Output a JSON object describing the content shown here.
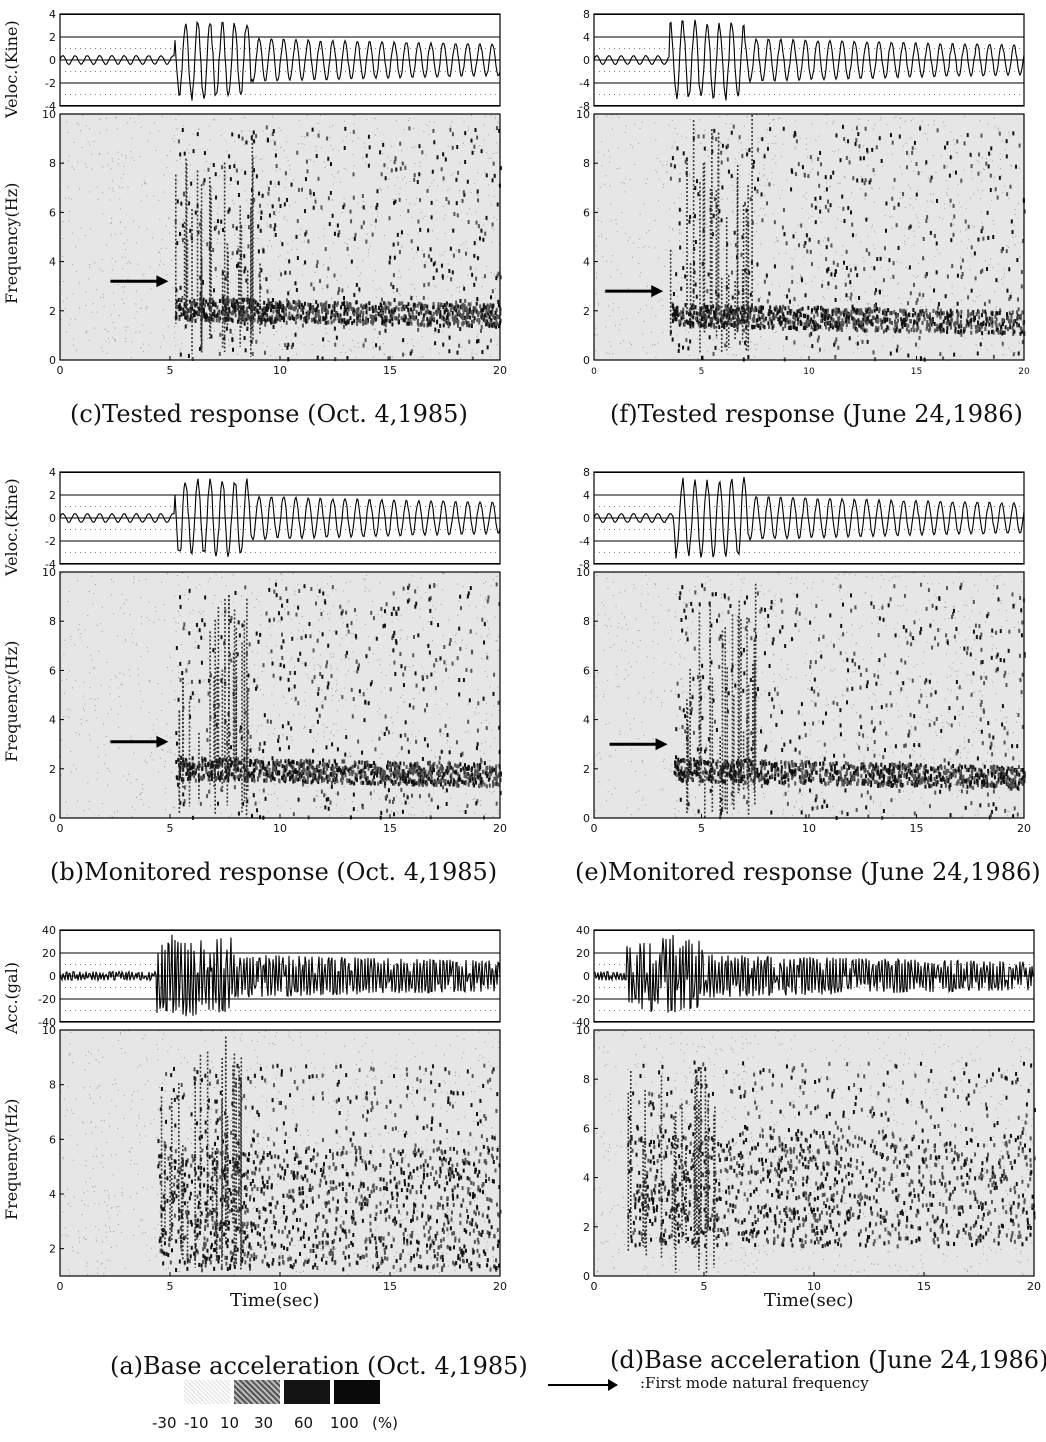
{
  "legend": {
    "levels": [
      "-30",
      "-10",
      "10",
      "30",
      "60",
      "100",
      "(%)"
    ],
    "swatch_colors": [
      "#ffffff",
      "#c9c9c9",
      "#777777",
      "#222222",
      "#111111"
    ],
    "arrow_note": ":First mode natural frequency"
  },
  "chart_data": [
    {
      "id": "c",
      "type": "heatmap",
      "caption": "(c)Tested response (Oct. 4,1985)",
      "trace": {
        "ylabel": "Veloc.(Kine)",
        "yticks": [
          "4",
          "2",
          "0",
          "-2",
          "-4"
        ],
        "ylim": [
          -4,
          4
        ],
        "onset_sec": 5.2
      },
      "spectrogram": {
        "ylabel": "Frequency(Hz)",
        "xlabel": "",
        "yticks": [
          "0",
          "2",
          "4",
          "6",
          "8",
          "10"
        ],
        "xticks": [
          "0",
          "5",
          "10",
          "15",
          "20"
        ],
        "xlim": [
          0,
          20
        ],
        "ylim": [
          0,
          10
        ],
        "first_mode_hz": 3.2,
        "onset_sec": 5.2
      },
      "xticks_small": false
    },
    {
      "id": "f",
      "type": "heatmap",
      "caption": "(f)Tested response (June 24,1986)",
      "trace": {
        "ylabel": "",
        "yticks": [
          "8",
          "4",
          "0",
          "-4",
          "-8"
        ],
        "ylim": [
          -8,
          8
        ],
        "onset_sec": 3.5
      },
      "spectrogram": {
        "ylabel": "",
        "xlabel": "",
        "yticks": [
          "0",
          "2",
          "4",
          "6",
          "8",
          "10"
        ],
        "xticks": [
          "0",
          "5",
          "10",
          "15",
          "20"
        ],
        "xlim": [
          0,
          20
        ],
        "ylim": [
          0,
          10
        ],
        "first_mode_hz": 2.8,
        "onset_sec": 3.5
      },
      "xticks_small": true
    },
    {
      "id": "b",
      "type": "heatmap",
      "caption": "(b)Monitored response (Oct. 4,1985)",
      "trace": {
        "ylabel": "Veloc.(Kine)",
        "yticks": [
          "4",
          "2",
          "0",
          "-2",
          "-4"
        ],
        "ylim": [
          -4,
          4
        ],
        "onset_sec": 5.2
      },
      "spectrogram": {
        "ylabel": "Frequency(Hz)",
        "xlabel": "",
        "yticks": [
          "0",
          "2",
          "4",
          "6",
          "8",
          "10"
        ],
        "xticks": [
          "0",
          "5",
          "10",
          "15",
          "20"
        ],
        "xlim": [
          0,
          20
        ],
        "ylim": [
          0,
          10
        ],
        "first_mode_hz": 3.1,
        "onset_sec": 5.2
      },
      "xticks_small": false
    },
    {
      "id": "e",
      "type": "heatmap",
      "caption": "(e)Monitored response (June 24,1986)",
      "trace": {
        "ylabel": "",
        "yticks": [
          "8",
          "4",
          "0",
          "-4",
          "-8"
        ],
        "ylim": [
          -8,
          8
        ],
        "onset_sec": 3.7
      },
      "spectrogram": {
        "ylabel": "",
        "xlabel": "",
        "yticks": [
          "0",
          "2",
          "4",
          "6",
          "8",
          "10"
        ],
        "xticks": [
          "0",
          "5",
          "10",
          "15",
          "20"
        ],
        "xlim": [
          0,
          20
        ],
        "ylim": [
          0,
          10
        ],
        "first_mode_hz": 3.0,
        "onset_sec": 3.7
      },
      "xticks_small": false
    },
    {
      "id": "a",
      "type": "heatmap",
      "caption": "(a)Base acceleration (Oct. 4,1985)",
      "trace": {
        "ylabel": "Acc.(gal)",
        "yticks": [
          "40",
          "20",
          "0",
          "-20",
          "-40"
        ],
        "ylim": [
          -40,
          40
        ],
        "onset_sec": 4.4
      },
      "spectrogram": {
        "ylabel": "Frequency(Hz)",
        "xlabel": "Time(sec)",
        "yticks": [
          "2",
          "4",
          "6",
          "8",
          "10"
        ],
        "xticks": [
          "0",
          "5",
          "10",
          "15",
          "20"
        ],
        "xlim": [
          0,
          20
        ],
        "ylim": [
          1,
          10
        ],
        "first_mode_hz": null,
        "onset_sec": 4.4
      },
      "xticks_small": false
    },
    {
      "id": "d",
      "type": "heatmap",
      "caption": "(d)Base acceleration (June 24,1986)",
      "trace": {
        "ylabel": "",
        "yticks": [
          "40",
          "20",
          "0",
          "-20",
          "-40"
        ],
        "ylim": [
          -40,
          40
        ],
        "onset_sec": 1.5
      },
      "spectrogram": {
        "ylabel": "",
        "xlabel": "Time(sec)",
        "yticks": [
          "0",
          "2",
          "4",
          "6",
          "8",
          "10"
        ],
        "xticks": [
          "0",
          "5",
          "10",
          "15",
          "20"
        ],
        "xlim": [
          0,
          20
        ],
        "ylim": [
          0,
          10
        ],
        "first_mode_hz": null,
        "onset_sec": 1.5
      },
      "xticks_small": false
    }
  ]
}
